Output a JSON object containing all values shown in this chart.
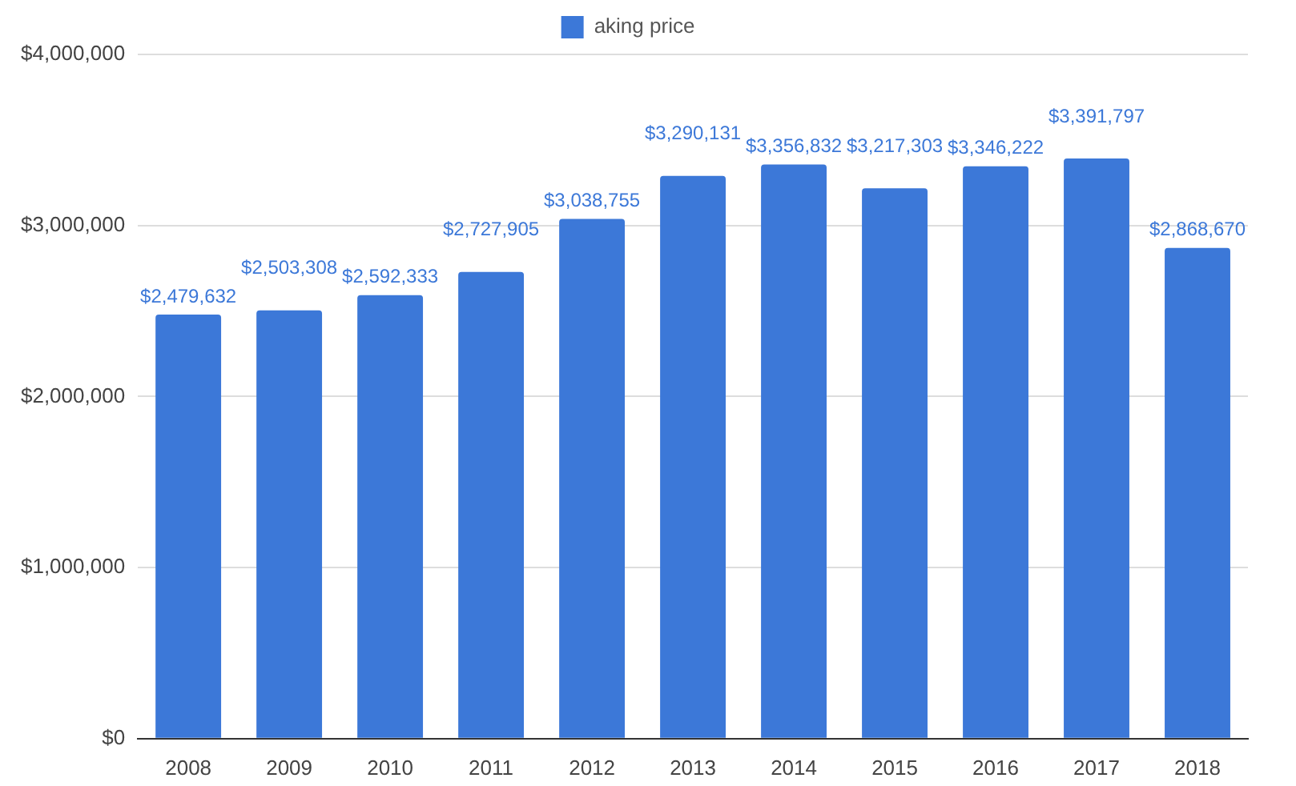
{
  "chart_data": {
    "type": "bar",
    "categories": [
      "2008",
      "2009",
      "2010",
      "2011",
      "2012",
      "2013",
      "2014",
      "2015",
      "2016",
      "2017",
      "2018"
    ],
    "series": [
      {
        "name": "aking price",
        "color": "#3c78d8",
        "values": [
          2479632,
          2503308,
          2592333,
          2727905,
          3038755,
          3290131,
          3356832,
          3217303,
          3346222,
          3391797,
          2868670
        ],
        "value_labels": [
          "$2,479,632",
          "$2,503,308",
          "$2,592,333",
          "$2,727,905",
          "$3,038,755",
          "$3,290,131",
          "$3,356,832",
          "$3,217,303",
          "$3,346,222",
          "$3,391,797",
          "$2,868,670"
        ]
      }
    ],
    "ylim": [
      0,
      4000000
    ],
    "yticks": [
      {
        "value": 0,
        "label": "$0"
      },
      {
        "value": 1000000,
        "label": "$1,000,000"
      },
      {
        "value": 2000000,
        "label": "$2,000,000"
      },
      {
        "value": 3000000,
        "label": "$3,000,000"
      },
      {
        "value": 4000000,
        "label": "$4,000,000"
      }
    ],
    "grid": "y",
    "legend": "top"
  }
}
